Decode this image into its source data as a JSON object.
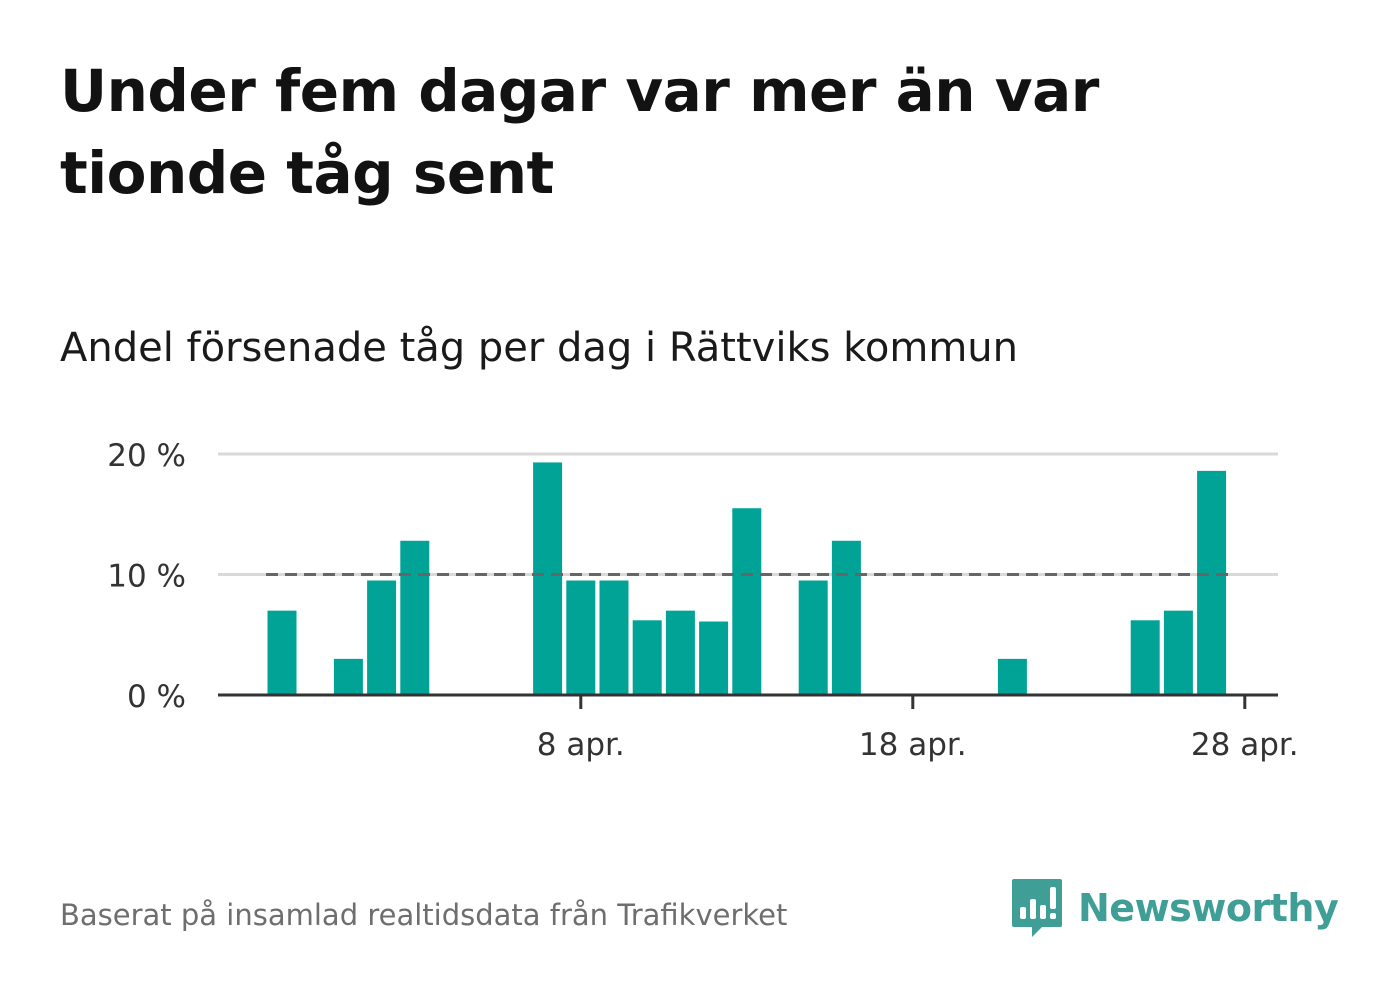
{
  "title": "Under fem dagar var mer än var tionde tåg sent",
  "subtitle": "Andel försenade tåg per dag i Rättviks kommun",
  "footer": "Baserat på insamlad realtidsdata från Trafikverket",
  "brand": {
    "name": "Newsworthy",
    "color": "#3f9e95"
  },
  "colors": {
    "bar": "#00a396",
    "reference_line": "#666666",
    "grid": "#d9d9d9",
    "axis": "#333333"
  },
  "chart_data": {
    "type": "bar",
    "title": "Andel försenade tåg per dag i Rättviks kommun",
    "xlabel": "",
    "ylabel": "",
    "x": [
      "2024-03-30",
      "2024-03-31",
      "2024-04-01",
      "2024-04-02",
      "2024-04-03",
      "2024-04-04",
      "2024-04-05",
      "2024-04-06",
      "2024-04-07",
      "2024-04-08",
      "2024-04-09",
      "2024-04-10",
      "2024-04-11",
      "2024-04-12",
      "2024-04-13",
      "2024-04-14",
      "2024-04-15",
      "2024-04-16",
      "2024-04-17",
      "2024-04-18",
      "2024-04-19",
      "2024-04-20",
      "2024-04-21",
      "2024-04-22",
      "2024-04-23",
      "2024-04-24",
      "2024-04-25",
      "2024-04-26",
      "2024-04-27",
      "2024-04-28"
    ],
    "values": [
      7.0,
      0,
      3.0,
      9.5,
      12.8,
      0,
      0,
      0,
      19.3,
      9.5,
      9.5,
      6.2,
      7.0,
      6.1,
      15.5,
      0,
      9.5,
      12.8,
      0,
      0,
      0,
      0,
      3.0,
      0,
      0,
      0,
      6.2,
      7.0,
      18.6,
      0
    ],
    "ylim": [
      0,
      20
    ],
    "yticks": [
      0,
      10,
      20
    ],
    "ytick_labels": [
      "0 %",
      "10 %",
      "20 %"
    ],
    "xticks": [
      "2024-04-08",
      "2024-04-18",
      "2024-04-28"
    ],
    "xtick_labels": [
      "8 apr.",
      "18 apr.",
      "28 apr."
    ],
    "reference_line": {
      "value": 10,
      "style": "dashed"
    },
    "grid": true
  }
}
